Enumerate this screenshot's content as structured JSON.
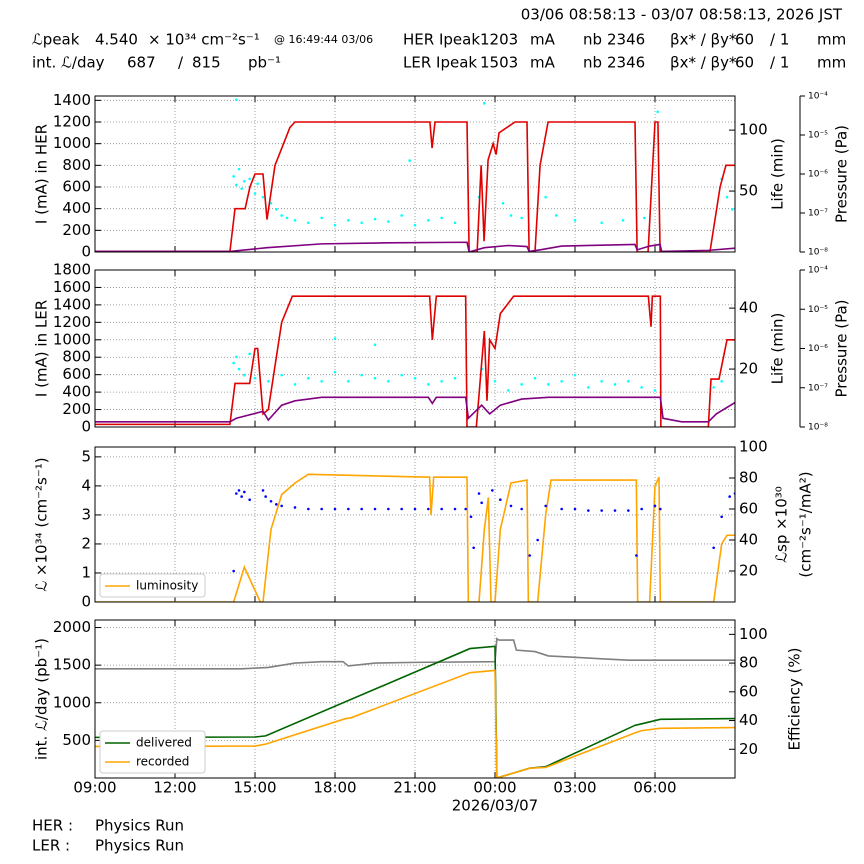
{
  "header": {
    "timestamp": "03/06 08:58:13 - 03/07 08:58:13, 2026 JST",
    "rows": [
      [
        "ℒpeak",
        "4.540",
        "× 10³⁴ cm⁻²s⁻¹",
        "@ 16:49:44 03/06",
        "HER Ipeak",
        "1203",
        "mA",
        "nb",
        "2346",
        "βx* / βy*",
        "60",
        "/ 1",
        "mm"
      ],
      [
        "int. ℒ/day",
        "687",
        "/",
        "815",
        "pb⁻¹",
        "LER Ipeak",
        "1503",
        "mA",
        "nb",
        "2346",
        "βx* / βy*",
        "60",
        "/ 1",
        "mm"
      ]
    ]
  },
  "footer": {
    "rows": [
      [
        "HER :",
        "Physics Run"
      ],
      [
        "LER :",
        "Physics Run"
      ]
    ]
  },
  "chart_data": [
    {
      "type": "line",
      "ylabel": "I (mA) in HER",
      "y2label": "Life (min)",
      "y3label": "Pressure (Pa)",
      "grid": true,
      "xlim": [
        9,
        33
      ],
      "xticks": [
        9,
        12,
        15,
        18,
        21,
        24,
        27,
        30
      ],
      "ylim": [
        0,
        1440
      ],
      "yticks": [
        0,
        200,
        400,
        600,
        800,
        1000,
        1200,
        1400
      ],
      "y2lim": [
        0,
        128
      ],
      "y2ticks": [
        50,
        100
      ],
      "y3lim": [
        1e-08,
        0.0001
      ],
      "y3log": true,
      "y3ticks": [
        {
          "value": 1e-08,
          "label": "10⁻⁸"
        },
        {
          "value": 1e-07,
          "label": "10⁻⁷"
        },
        {
          "value": 1e-06,
          "label": "10⁻⁶"
        },
        {
          "value": 1e-05,
          "label": "10⁻⁵"
        },
        {
          "value": 0.0001,
          "label": "10⁻⁴"
        }
      ],
      "series": [
        {
          "color": "#00ffff",
          "mode": "markers",
          "axis": "y2",
          "x": [
            14.2,
            14.3,
            14.4,
            14.5,
            14.6,
            14.8,
            15,
            15.1,
            15.3,
            15.6,
            15.8,
            16,
            16.2,
            16.5,
            17,
            17.5,
            18,
            18.5,
            19,
            19.5,
            20,
            20.5,
            21,
            21.5,
            22,
            22.5,
            23.4,
            24.3,
            24.6,
            25,
            25.9,
            26.3,
            27,
            28,
            28.8,
            29.6,
            30.1,
            32.5,
            32.7,
            32.9,
            14.3,
            20.8,
            23.6
          ],
          "values": [
            62,
            55,
            68,
            52,
            58,
            60,
            48,
            56,
            45,
            40,
            35,
            30,
            28,
            26,
            24,
            28,
            22,
            26,
            24,
            27,
            25,
            30,
            22,
            26,
            28,
            24,
            45,
            40,
            30,
            28,
            45,
            30,
            26,
            24,
            26,
            28,
            115,
            60,
            45,
            35,
            125,
            75,
            122
          ]
        },
        {
          "color": "#e00000",
          "x": [
            9,
            14.06,
            14.25,
            14.63,
            14.81,
            15,
            15.3,
            15.45,
            15.75,
            16.31,
            16.5,
            21.56,
            21.64,
            21.75,
            22.95,
            23.03,
            23.33,
            23.48,
            23.59,
            23.74,
            23.93,
            24.04,
            24.15,
            24.75,
            25.2,
            25.28,
            25.5,
            25.69,
            25.99,
            29.25,
            29.33,
            29.74,
            30,
            30.11,
            30.19,
            32.06,
            32.44,
            32.66,
            33
          ],
          "values": [
            5,
            5,
            400,
            400,
            600,
            720,
            720,
            300,
            800,
            1150,
            1200,
            1200,
            960,
            1200,
            1200,
            0,
            0,
            800,
            100,
            850,
            1000,
            900,
            1100,
            1200,
            1200,
            0,
            0,
            800,
            1200,
            1200,
            0,
            0,
            1200,
            1200,
            0,
            0,
            600,
            800,
            800
          ]
        },
        {
          "color": "#800080",
          "x": [
            9,
            14.06,
            15.45,
            17.5,
            20,
            22.95,
            23.03,
            23.6,
            24.5,
            25.2,
            25.28,
            25.7,
            26.5,
            29.25,
            29.33,
            29.8,
            30.19,
            30.25,
            32,
            33
          ],
          "values": [
            5,
            5,
            40,
            75,
            85,
            90,
            0,
            40,
            60,
            50,
            5,
            20,
            55,
            70,
            20,
            55,
            70,
            5,
            15,
            35
          ]
        }
      ]
    },
    {
      "type": "line",
      "ylabel": "I (mA) in LER",
      "y2label": "Life (min)",
      "y3label": "Pressure (Pa)",
      "grid": true,
      "xlim": [
        9,
        33
      ],
      "xticks": [
        9,
        12,
        15,
        18,
        21,
        24,
        27,
        30
      ],
      "ylim": [
        0,
        1800
      ],
      "yticks": [
        0,
        200,
        400,
        600,
        800,
        1000,
        1200,
        1400,
        1600,
        1800
      ],
      "y2lim": [
        1,
        52.5
      ],
      "y2ticks": [
        20,
        40
      ],
      "y3lim": [
        1e-08,
        0.0001
      ],
      "y3log": true,
      "y3ticks": [
        {
          "value": 1e-08,
          "label": "10⁻⁸"
        },
        {
          "value": 1e-07,
          "label": "10⁻⁷"
        },
        {
          "value": 1e-06,
          "label": "10⁻⁶"
        },
        {
          "value": 1e-05,
          "label": "10⁻⁵"
        },
        {
          "value": 0.0001,
          "label": "10⁻⁴"
        }
      ],
      "series": [
        {
          "color": "#00ffff",
          "mode": "markers",
          "axis": "y2",
          "x": [
            14.2,
            14.3,
            14.4,
            14.6,
            15,
            15.5,
            16,
            16.5,
            17,
            17.5,
            18,
            18.5,
            19,
            19.5,
            20,
            20.5,
            21,
            21.5,
            22,
            22.5,
            23.5,
            24,
            24.5,
            25,
            25.5,
            26,
            26.5,
            27,
            27.5,
            28,
            28.5,
            29,
            29.5,
            30,
            32.2,
            32.5,
            14.8,
            18,
            19.5
          ],
          "values": [
            22,
            24,
            20,
            18,
            17,
            16,
            18,
            15,
            17,
            16,
            19,
            16,
            18,
            17,
            16,
            18,
            17,
            15,
            16,
            17,
            20,
            16,
            13,
            15,
            17,
            15,
            16,
            18,
            14,
            16,
            15,
            16,
            14,
            13,
            14,
            16,
            25,
            30,
            28
          ]
        },
        {
          "color": "#e00000",
          "x": [
            9,
            14.06,
            14.25,
            14.8,
            15,
            15.1,
            15.3,
            15.5,
            16,
            16.4,
            21.55,
            21.65,
            21.8,
            22.9,
            22.95,
            23.3,
            23.6,
            23.7,
            23.8,
            24,
            24.2,
            24.7,
            29.75,
            29.85,
            29.9,
            30.2,
            30.22,
            32,
            32.1,
            32.4,
            32.7,
            33
          ],
          "values": [
            30,
            30,
            500,
            500,
            900,
            900,
            150,
            200,
            1200,
            1500,
            1500,
            1000,
            1500,
            1500,
            0,
            0,
            1100,
            300,
            1000,
            900,
            1300,
            1500,
            1500,
            1150,
            1500,
            1500,
            0,
            0,
            550,
            550,
            1000,
            1000
          ]
        },
        {
          "color": "#800080",
          "x": [
            9,
            14.06,
            14.3,
            15.3,
            15.5,
            16,
            16.5,
            17.5,
            21.5,
            21.65,
            21.8,
            22.9,
            23,
            23.5,
            23.8,
            24.2,
            25,
            26,
            29.9,
            30.2,
            30.3,
            31,
            32,
            32.3,
            33
          ],
          "values": [
            60,
            60,
            100,
            180,
            80,
            250,
            300,
            340,
            340,
            270,
            340,
            340,
            100,
            250,
            150,
            250,
            320,
            340,
            340,
            340,
            100,
            60,
            60,
            150,
            280
          ]
        }
      ]
    },
    {
      "type": "line",
      "ylabel": "ℒ ×10³⁴ (cm⁻²s⁻¹)",
      "y2label": [
        "ℒsp ×10³⁰",
        "(cm⁻²s⁻¹/mA²)"
      ],
      "grid": true,
      "legend": "lower left",
      "xlim": [
        9,
        33
      ],
      "xticks": [
        9,
        12,
        15,
        18,
        21,
        24,
        27,
        30
      ],
      "ylim": [
        0,
        5.34
      ],
      "yticks": [
        0,
        1,
        2,
        3,
        4,
        5
      ],
      "y2lim": [
        0,
        100
      ],
      "y2ticks": [
        20,
        40,
        60,
        80,
        100
      ],
      "series": [
        {
          "name": "luminosity",
          "color": "#ffa500",
          "x": [
            9,
            14.2,
            14.6,
            15.2,
            15.3,
            15.6,
            16,
            16.5,
            17,
            21.55,
            21.6,
            21.7,
            22.95,
            23,
            23.4,
            23.6,
            23.75,
            23.85,
            24,
            24.2,
            24.6,
            25.2,
            25.25,
            25.6,
            25.9,
            26.1,
            29.3,
            29.35,
            29.8,
            30,
            30.15,
            30.2,
            32.2,
            32.5,
            32.7,
            33
          ],
          "values": [
            0,
            0,
            1.2,
            0,
            0,
            2.5,
            3.7,
            4.1,
            4.4,
            4.3,
            3,
            4.3,
            4.3,
            0,
            0,
            2.5,
            3.6,
            0,
            0,
            2.5,
            4.1,
            4.2,
            0,
            0,
            3,
            4.2,
            4.2,
            0,
            0,
            4,
            4.3,
            0,
            0,
            2,
            2.3,
            2.3
          ]
        },
        {
          "color": "#0000ff",
          "mode": "markers",
          "axis": "y2",
          "x": [
            14.2,
            14.3,
            14.4,
            14.5,
            14.6,
            14.8,
            15.3,
            15.4,
            15.6,
            15.8,
            16,
            16.5,
            17,
            17.5,
            18,
            18.5,
            19,
            19.5,
            20,
            20.5,
            21,
            21.5,
            22,
            22.5,
            22.9,
            23.1,
            23.2,
            23.4,
            23.5,
            23.9,
            24.2,
            24.6,
            25,
            25.3,
            25.6,
            25.9,
            26.5,
            27,
            27.5,
            28,
            28.5,
            29,
            29.3,
            29.5,
            30,
            30.2,
            32.2,
            32.5,
            32.8,
            33
          ],
          "values": [
            20,
            70,
            72,
            68,
            71,
            66,
            72,
            68,
            65,
            63,
            62,
            61,
            60,
            60,
            60,
            60,
            60,
            60,
            60,
            60,
            60,
            60,
            60,
            60,
            60,
            55,
            35,
            70,
            64,
            72,
            66,
            62,
            60,
            30,
            40,
            62,
            60,
            60,
            59,
            59,
            59,
            59,
            30,
            60,
            62,
            60,
            35,
            55,
            68,
            70
          ]
        }
      ]
    },
    {
      "type": "line",
      "ylabel": "int. ℒ/day (pb⁻¹)",
      "y2label": "Efficiency (%)",
      "grid": true,
      "legend": "lower left",
      "xlabel": "2026/03/07",
      "xlabel_at": 24,
      "xlim": [
        9,
        33
      ],
      "xticks": [
        {
          "value": 9,
          "label": "09:00"
        },
        {
          "value": 12,
          "label": "12:00"
        },
        {
          "value": 15,
          "label": "15:00"
        },
        {
          "value": 18,
          "label": "18:00"
        },
        {
          "value": 21,
          "label": "21:00"
        },
        {
          "value": 24,
          "label": "00:00"
        },
        {
          "value": 27,
          "label": "03:00"
        },
        {
          "value": 30,
          "label": "06:00"
        }
      ],
      "ylim": [
        0,
        2100
      ],
      "yticks": [
        500,
        1000,
        1500,
        2000
      ],
      "y2lim": [
        0,
        110
      ],
      "y2ticks": [
        20,
        40,
        60,
        80,
        100
      ],
      "series": [
        {
          "color": "#808080",
          "axis": "y2",
          "x": [
            9,
            14.5,
            15.5,
            16.5,
            17.5,
            18.3,
            18.5,
            19.5,
            21,
            24,
            24.07,
            24.15,
            24.7,
            24.8,
            25.5,
            26,
            27,
            28,
            29,
            33
          ],
          "values": [
            76,
            76,
            77,
            80,
            81,
            81,
            78,
            80,
            80.5,
            81,
            97,
            96,
            96,
            89,
            88,
            85,
            84,
            83,
            82,
            82
          ]
        },
        {
          "name": "delivered",
          "color": "#006400",
          "x": [
            9,
            15,
            15.4,
            23.06,
            24,
            24.07,
            25.3,
            25.9,
            29.25,
            29.5,
            30.2,
            33
          ],
          "values": [
            540,
            545,
            560,
            1720,
            1750,
            0,
            130,
            150,
            700,
            720,
            780,
            790
          ]
        },
        {
          "name": "recorded",
          "color": "#ffa500",
          "x": [
            9,
            15,
            15.4,
            18.4,
            18.6,
            23.06,
            24,
            24.07,
            25.3,
            25.9,
            29.25,
            29.5,
            30.2,
            33
          ],
          "values": [
            420,
            425,
            450,
            790,
            800,
            1400,
            1430,
            0,
            130,
            140,
            600,
            630,
            660,
            670
          ]
        }
      ]
    }
  ]
}
